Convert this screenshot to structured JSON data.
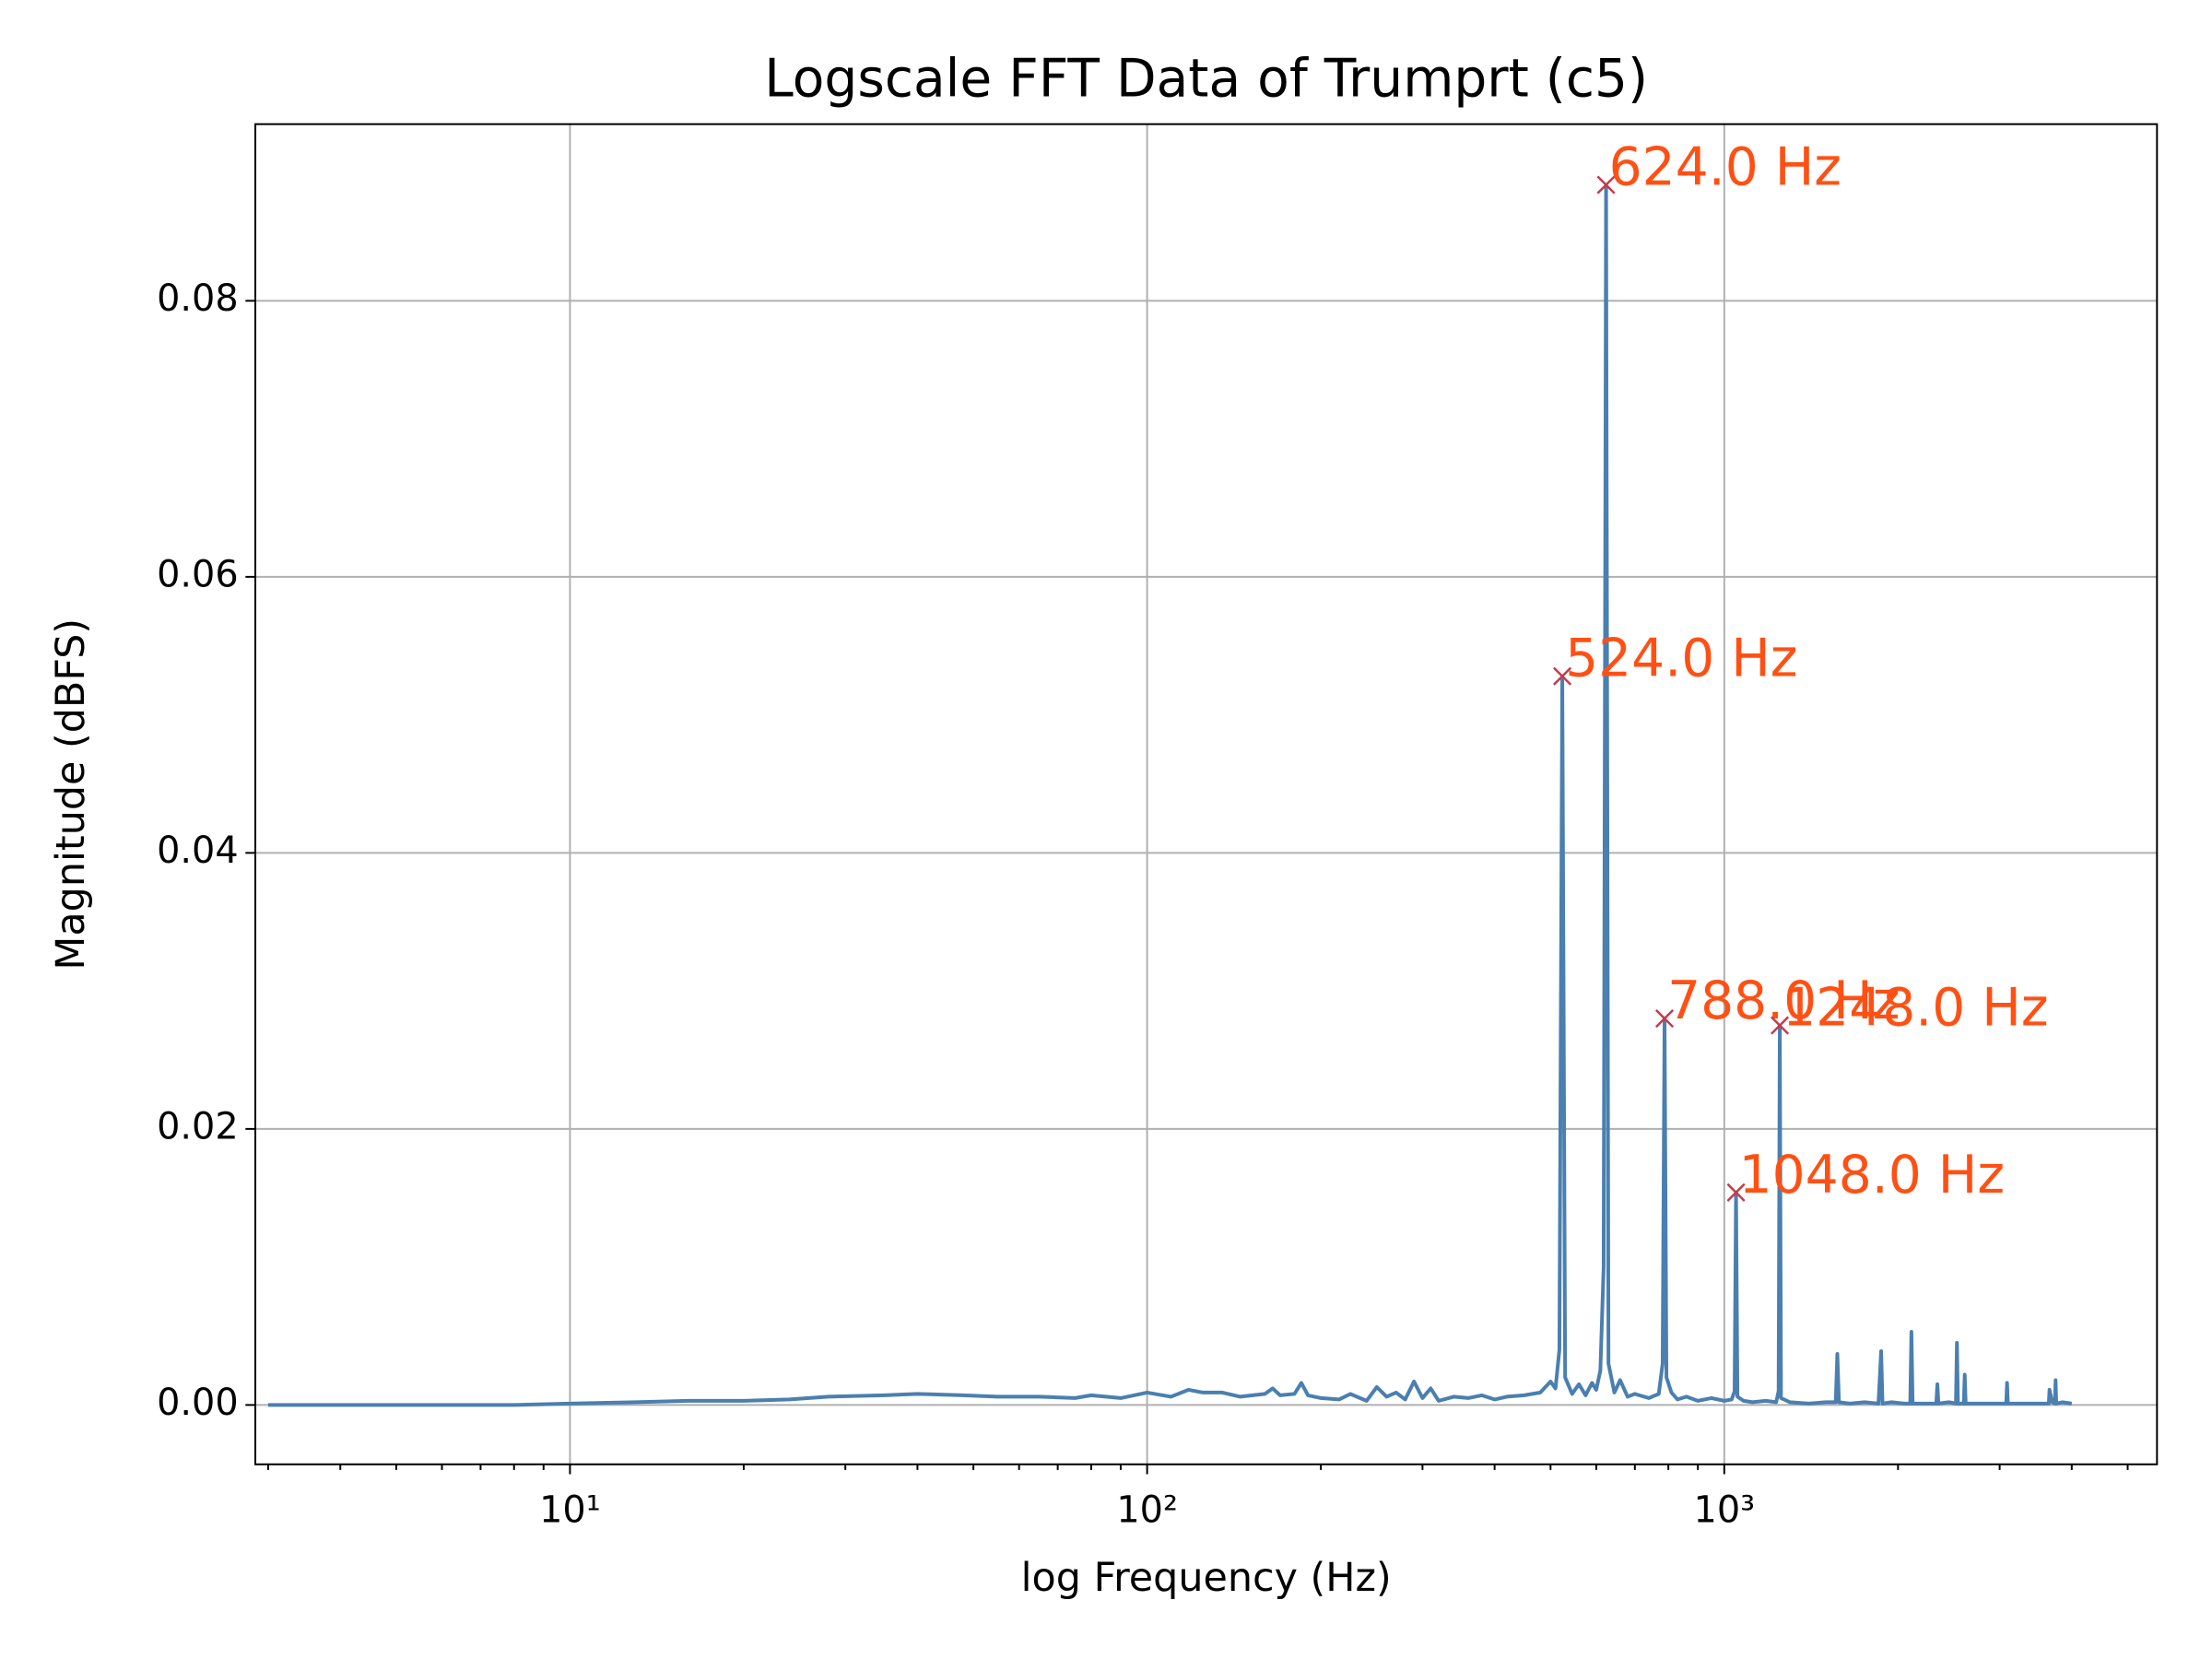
{
  "chart_data": {
    "type": "line",
    "title": "Logscale FFT Data of Trumprt (c5)",
    "x_label": "log Frequency (Hz)",
    "y_label": "Magnitude (dBFS)",
    "x_scale": "log",
    "grid": true,
    "xlim": [
      2.85,
      5620
    ],
    "ylim": [
      -0.0043,
      0.0928
    ],
    "xticks": [
      {
        "value": 10,
        "label": "10¹"
      },
      {
        "value": 100,
        "label": "10²"
      },
      {
        "value": 1000,
        "label": "10³"
      }
    ],
    "xminorticks": [
      3,
      4,
      5,
      6,
      7,
      8,
      9,
      20,
      30,
      40,
      50,
      60,
      70,
      80,
      90,
      200,
      300,
      400,
      500,
      600,
      700,
      800,
      900,
      2000,
      3000,
      4000,
      5000
    ],
    "yticks": [
      {
        "value": 0,
        "label": "0.00"
      },
      0.02,
      0.04,
      0.06,
      0.08
    ],
    "x": [
      3,
      5,
      8,
      10,
      13,
      16,
      20,
      24,
      28,
      35,
      40,
      48,
      55,
      65,
      75,
      80,
      90,
      100,
      110,
      118,
      125,
      135,
      145,
      160,
      165,
      170,
      180,
      185,
      190,
      200,
      215,
      225,
      240,
      250,
      260,
      270,
      280,
      290,
      300,
      310,
      320,
      340,
      360,
      380,
      400,
      420,
      450,
      480,
      500,
      510,
      518,
      524,
      530,
      545,
      560,
      575,
      590,
      600,
      610,
      618,
      624,
      630,
      645,
      660,
      680,
      700,
      740,
      770,
      782,
      788,
      794,
      810,
      830,
      860,
      900,
      950,
      1000,
      1030,
      1042,
      1048,
      1054,
      1080,
      1120,
      1180,
      1230,
      1242,
      1248,
      1254,
      1300,
      1400,
      1500,
      1560,
      1570,
      1580,
      1650,
      1750,
      1850,
      1870,
      1880,
      1950,
      2050,
      2100,
      2110,
      2120,
      2200,
      2330,
      2340,
      2350,
      2450,
      2520,
      2530,
      2540,
      2600,
      2610,
      2620,
      2750,
      3000,
      3080,
      3090,
      3100,
      3300,
      3600,
      3650,
      3660,
      3700,
      3740,
      3750,
      3760,
      3850,
      4000
    ],
    "series": [
      {
        "color": "#4a7fb0",
        "values": [
          0,
          0,
          0,
          0.0001,
          0.0002,
          0.0003,
          0.0003,
          0.0004,
          0.0006,
          0.0007,
          0.0008,
          0.0007,
          0.0006,
          0.0006,
          0.0005,
          0.0007,
          0.0005,
          0.0009,
          0.0006,
          0.0011,
          0.0009,
          0.0009,
          0.0006,
          0.0008,
          0.0012,
          0.0007,
          0.0008,
          0.0016,
          0.0007,
          0.0005,
          0.0004,
          0.0008,
          0.0003,
          0.0013,
          0.0006,
          0.0009,
          0.0004,
          0.0017,
          0.0005,
          0.0012,
          0.0003,
          0.0006,
          0.0005,
          0.0007,
          0.0004,
          0.0006,
          0.0007,
          0.0009,
          0.0017,
          0.0012,
          0.004,
          0.0528,
          0.002,
          0.0008,
          0.0015,
          0.0007,
          0.0016,
          0.0011,
          0.0025,
          0.01,
          0.0884,
          0.003,
          0.0009,
          0.0018,
          0.0006,
          0.0008,
          0.0005,
          0.0008,
          0.003,
          0.028,
          0.002,
          0.0009,
          0.0004,
          0.0006,
          0.0003,
          0.0005,
          0.0003,
          0.0004,
          0.001,
          0.0154,
          0.0006,
          0.0003,
          0.0002,
          0.0003,
          0.0002,
          0.001,
          0.0275,
          0.0005,
          0.0002,
          0.0001,
          0.0002,
          0.0002,
          0.0037,
          0.0002,
          0.0001,
          0.0002,
          0.0001,
          0.0039,
          0.0001,
          0.0002,
          0.0001,
          0.0001,
          0.0053,
          0.0001,
          0.0001,
          0.0001,
          0.0015,
          0.0001,
          0.0002,
          0.0001,
          0.0045,
          0.0001,
          0.0001,
          0.0022,
          0.0001,
          0.0001,
          0.0001,
          0.0001,
          0.0016,
          0.0001,
          0.0001,
          0.0001,
          0.0001,
          0.0011,
          0.0002,
          0.0001,
          0.0018,
          0.0001,
          0.0002,
          0.0001
        ]
      }
    ],
    "peaks": {
      "marker_color": "#c8384a",
      "label_color": "#ff5014",
      "x": [
        524,
        624,
        788,
        1048,
        1248
      ],
      "values": [
        0.0528,
        0.0884,
        0.028,
        0.0154,
        0.0275
      ],
      "labels": [
        "524.0 Hz",
        "624.0 Hz",
        "788.0 Hz",
        "1048.0 Hz",
        "1248.0 Hz"
      ]
    }
  }
}
